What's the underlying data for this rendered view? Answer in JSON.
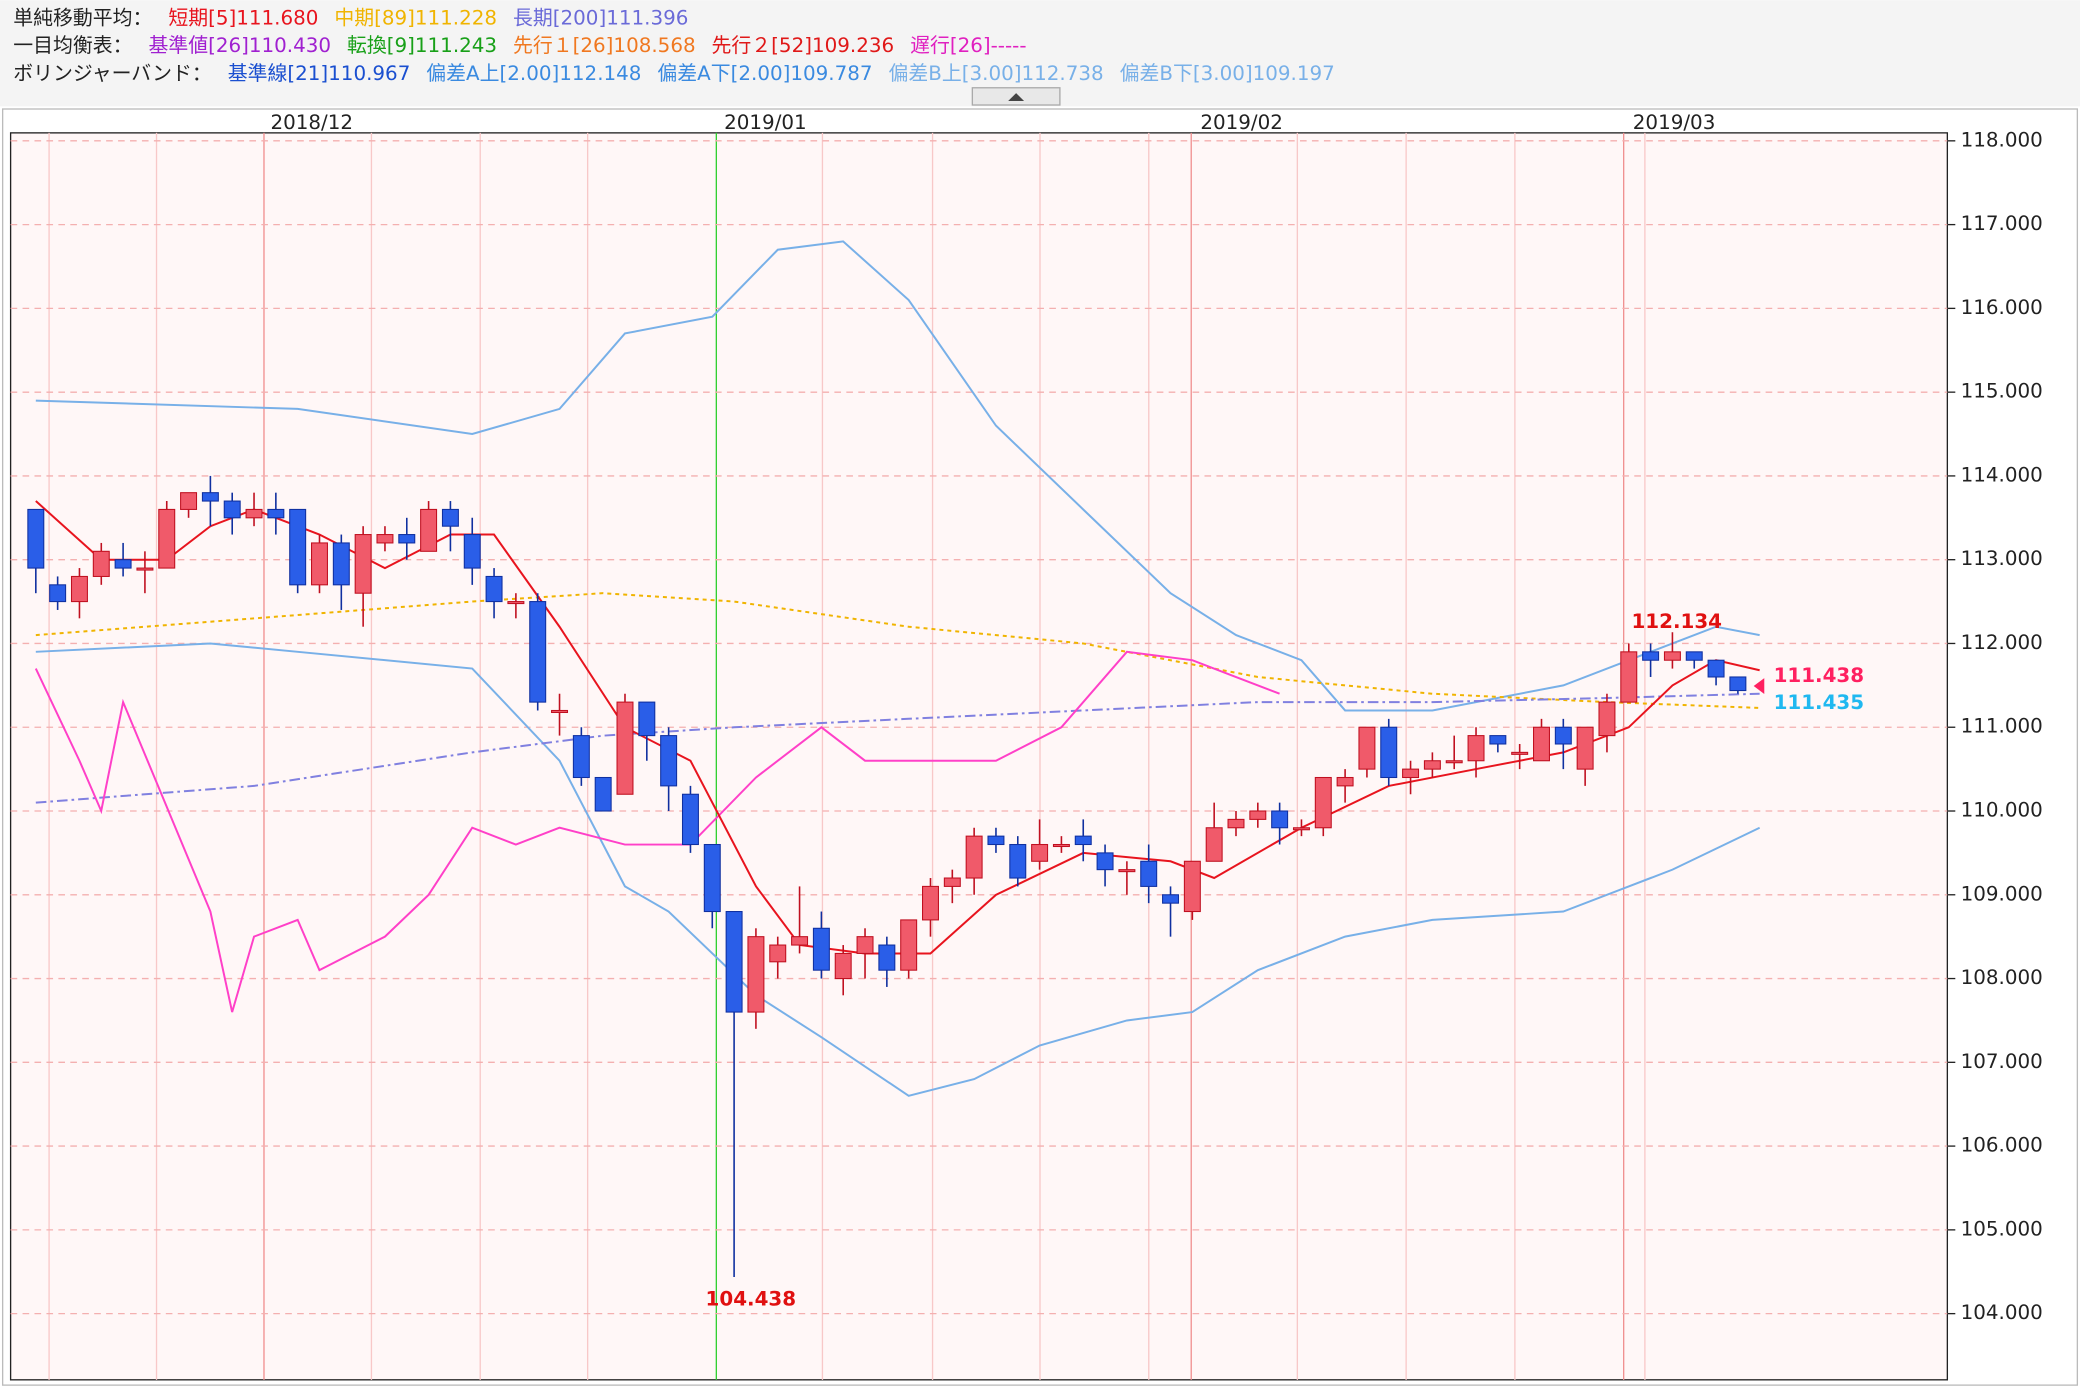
{
  "chart_data": {
    "type": "candlestick",
    "legend": [
      [
        {
          "text": "単純移動平均：",
          "color": "#222"
        },
        {
          "text": "短期[5]111.680",
          "color": "#e8141e"
        },
        {
          "text": "中期[89]111.228",
          "color": "#f0b400"
        },
        {
          "text": "長期[200]111.396",
          "color": "#6a6ad8"
        }
      ],
      [
        {
          "text": "一目均衡表：",
          "color": "#222"
        },
        {
          "text": "基準値[26]110.430",
          "color": "#a020d0"
        },
        {
          "text": "転換[9]111.243",
          "color": "#18a018"
        },
        {
          "text": "先行１[26]108.568",
          "color": "#f07820"
        },
        {
          "text": "先行２[52]109.236",
          "color": "#e01818"
        },
        {
          "text": "遅行[26]-----",
          "color": "#e020c0"
        }
      ],
      [
        {
          "text": "ボリンジャーバンド：",
          "color": "#222"
        },
        {
          "text": "基準線[21]110.967",
          "color": "#1a4fd0"
        },
        {
          "text": "偏差A上[2.00]112.148",
          "color": "#3a8ae0"
        },
        {
          "text": "偏差A下[2.00]109.787",
          "color": "#3a8ae0"
        },
        {
          "text": "偏差B上[3.00]112.738",
          "color": "#78b0e8"
        },
        {
          "text": "偏差B下[3.00]109.197",
          "color": "#78b0e8"
        }
      ]
    ],
    "date_labels": [
      "2018/12",
      "2019/01",
      "2019/02",
      "2019/03"
    ],
    "annotations": [
      "104.438",
      "112.134",
      "111.438",
      "111.435"
    ],
    "ylim": [
      103.21,
      118.095
    ],
    "yticks": [
      {
        "value": 104,
        "label": "104.000"
      },
      {
        "value": 105,
        "label": "105.000"
      },
      {
        "value": 106,
        "label": "106.000"
      },
      {
        "value": 107,
        "label": "107.000"
      },
      {
        "value": 108,
        "label": "108.000"
      },
      {
        "value": 109,
        "label": "109.000"
      },
      {
        "value": 110,
        "label": "110.000"
      },
      {
        "value": 111,
        "label": "111.000"
      },
      {
        "value": 112,
        "label": "112.000"
      },
      {
        "value": 113,
        "label": "113.000"
      },
      {
        "value": 114,
        "label": "114.000"
      },
      {
        "value": 115,
        "label": "115.000"
      },
      {
        "value": 116,
        "label": "116.000"
      },
      {
        "value": 117,
        "label": "117.000"
      },
      {
        "value": 118,
        "label": "118.000"
      }
    ],
    "grid": true,
    "up_color": "#f05a6a",
    "down_color": "#2a5ee8",
    "open": [
      113.6,
      112.7,
      112.5,
      112.8,
      113.0,
      112.9,
      112.9,
      113.6,
      113.8,
      113.7,
      113.5,
      113.6,
      113.6,
      112.7,
      113.2,
      112.6,
      113.2,
      113.3,
      113.1,
      113.6,
      113.3,
      112.8,
      112.5,
      112.5,
      111.2,
      110.9,
      110.4,
      110.2,
      111.3,
      110.9,
      110.2,
      109.6,
      108.8,
      107.6,
      108.2,
      108.4,
      108.6,
      108.0,
      108.3,
      108.4,
      108.1,
      108.7,
      109.1,
      109.2,
      109.7,
      109.6,
      109.4,
      109.6,
      109.7,
      109.5,
      109.3,
      109.4,
      109.0,
      108.8,
      109.4,
      109.8,
      109.9,
      110.0,
      109.8,
      109.8,
      110.3,
      110.5,
      111.0,
      110.4,
      110.5,
      110.6,
      110.6,
      110.9,
      110.7,
      110.6,
      111.0,
      110.5,
      110.9,
      111.3,
      111.9,
      111.8,
      111.9,
      111.8,
      111.6
    ],
    "high": [
      113.6,
      112.8,
      112.9,
      113.2,
      113.2,
      113.1,
      113.7,
      113.8,
      114.0,
      113.8,
      113.8,
      113.8,
      113.6,
      113.3,
      113.3,
      113.4,
      113.4,
      113.5,
      113.7,
      113.7,
      113.5,
      112.9,
      112.6,
      112.6,
      111.4,
      111.0,
      110.4,
      111.4,
      111.3,
      111.0,
      110.3,
      109.6,
      108.8,
      108.6,
      108.5,
      109.1,
      108.8,
      108.4,
      108.6,
      108.5,
      108.7,
      109.2,
      109.3,
      109.8,
      109.8,
      109.7,
      109.9,
      109.7,
      109.9,
      109.6,
      109.4,
      109.6,
      109.1,
      109.4,
      110.1,
      110.0,
      110.1,
      110.1,
      109.9,
      110.4,
      110.5,
      111.0,
      111.1,
      110.6,
      110.7,
      110.9,
      111.0,
      110.9,
      110.8,
      111.1,
      111.1,
      111.0,
      111.4,
      112.0,
      112.0,
      112.134,
      111.9,
      111.8,
      111.6
    ],
    "low": [
      112.6,
      112.4,
      112.3,
      112.7,
      112.8,
      112.6,
      112.9,
      113.5,
      113.4,
      113.3,
      113.4,
      113.3,
      112.6,
      112.6,
      112.4,
      112.2,
      113.1,
      113.0,
      113.1,
      113.1,
      112.7,
      112.3,
      112.3,
      111.2,
      110.9,
      110.3,
      110.0,
      110.2,
      110.6,
      110.0,
      109.5,
      108.6,
      104.438,
      107.4,
      108.0,
      108.3,
      108.0,
      107.8,
      108.0,
      107.9,
      108.0,
      108.5,
      108.9,
      109.0,
      109.5,
      109.1,
      109.3,
      109.5,
      109.4,
      109.1,
      109.0,
      108.9,
      108.5,
      108.7,
      109.4,
      109.7,
      109.8,
      109.6,
      109.7,
      109.7,
      110.1,
      110.4,
      110.3,
      110.2,
      110.4,
      110.5,
      110.4,
      110.7,
      110.5,
      110.6,
      110.5,
      110.3,
      110.7,
      111.3,
      111.6,
      111.7,
      111.7,
      111.5,
      111.4
    ],
    "close": [
      112.9,
      112.5,
      112.8,
      113.1,
      112.9,
      112.9,
      113.6,
      113.8,
      113.7,
      113.5,
      113.6,
      113.5,
      112.7,
      113.2,
      112.7,
      113.3,
      113.3,
      113.2,
      113.6,
      113.4,
      112.9,
      112.5,
      112.5,
      111.3,
      111.2,
      110.4,
      110.0,
      111.3,
      110.9,
      110.3,
      109.6,
      108.8,
      107.6,
      108.5,
      108.4,
      108.5,
      108.1,
      108.3,
      108.5,
      108.1,
      108.7,
      109.1,
      109.2,
      109.7,
      109.6,
      109.2,
      109.6,
      109.6,
      109.6,
      109.3,
      109.3,
      109.1,
      108.9,
      109.4,
      109.8,
      109.9,
      110.0,
      109.8,
      109.8,
      110.4,
      110.4,
      111.0,
      110.4,
      110.5,
      110.6,
      110.6,
      110.9,
      110.8,
      110.7,
      111.0,
      110.8,
      111.0,
      111.3,
      111.9,
      111.8,
      111.9,
      111.8,
      111.6,
      111.438
    ],
    "series": [
      {
        "color": "#78b0e8",
        "dash": "",
        "x": [
          0,
          12,
          20,
          24,
          27,
          31,
          34,
          37,
          40,
          44,
          48,
          52,
          55,
          58,
          60,
          64,
          70,
          74,
          77,
          79
        ],
        "values": [
          114.9,
          114.8,
          114.5,
          114.8,
          115.7,
          115.9,
          116.7,
          116.8,
          116.1,
          114.6,
          113.6,
          112.6,
          112.1,
          111.8,
          111.2,
          111.2,
          111.5,
          111.9,
          112.2,
          112.1
        ]
      },
      {
        "color": "#78b0e8",
        "dash": "",
        "x": [
          0,
          8,
          12,
          20,
          24,
          27,
          29,
          33,
          36,
          40,
          43,
          46,
          50,
          53,
          56,
          60,
          64,
          70,
          75,
          79
        ],
        "values": [
          111.9,
          112.0,
          111.9,
          111.7,
          110.6,
          109.1,
          108.8,
          107.8,
          107.3,
          106.6,
          106.8,
          107.2,
          107.5,
          107.6,
          108.1,
          108.5,
          108.7,
          108.8,
          109.3,
          109.8
        ]
      },
      {
        "color": "#f0b400",
        "dash": "3 3",
        "x": [
          0,
          10,
          20,
          26,
          32,
          40,
          48,
          56,
          64,
          72,
          79
        ],
        "values": [
          112.1,
          112.3,
          112.5,
          112.6,
          112.5,
          112.2,
          112.0,
          111.6,
          111.4,
          111.3,
          111.23
        ]
      },
      {
        "color": "#8080e0",
        "dash": "8 3 2 3",
        "x": [
          0,
          10,
          20,
          26,
          32,
          40,
          48,
          56,
          64,
          72,
          79
        ],
        "values": [
          110.1,
          110.3,
          110.7,
          110.9,
          111.0,
          111.1,
          111.2,
          111.3,
          111.3,
          111.35,
          111.4
        ]
      },
      {
        "color": "#ff40c8",
        "dash": "",
        "x": [
          0,
          2,
          3,
          4,
          8,
          9,
          10,
          12,
          13,
          16,
          18,
          20,
          22,
          24,
          27,
          30,
          33,
          36,
          38,
          41,
          44,
          47,
          50,
          53,
          55,
          57
        ],
        "values": [
          111.7,
          110.6,
          110.0,
          111.3,
          108.8,
          107.6,
          108.5,
          108.7,
          108.1,
          108.5,
          109.0,
          109.8,
          109.6,
          109.8,
          109.6,
          109.6,
          110.4,
          111.0,
          110.6,
          110.6,
          110.6,
          111.0,
          111.9,
          111.8,
          111.6,
          111.4
        ]
      },
      {
        "color": "#e8141e",
        "dash": "",
        "x": [
          0,
          3,
          6,
          8,
          10,
          13,
          16,
          19,
          21,
          24,
          27,
          30,
          33,
          35,
          38,
          41,
          44,
          48,
          52,
          54,
          58,
          62,
          66,
          70,
          73,
          75,
          77,
          79
        ],
        "values": [
          113.7,
          113.0,
          113.0,
          113.4,
          113.6,
          113.3,
          112.9,
          113.3,
          113.3,
          112.2,
          111.0,
          110.6,
          109.1,
          108.4,
          108.3,
          108.3,
          109.0,
          109.5,
          109.4,
          109.2,
          109.8,
          110.3,
          110.5,
          110.7,
          111.0,
          111.5,
          111.8,
          111.68
        ]
      }
    ]
  }
}
